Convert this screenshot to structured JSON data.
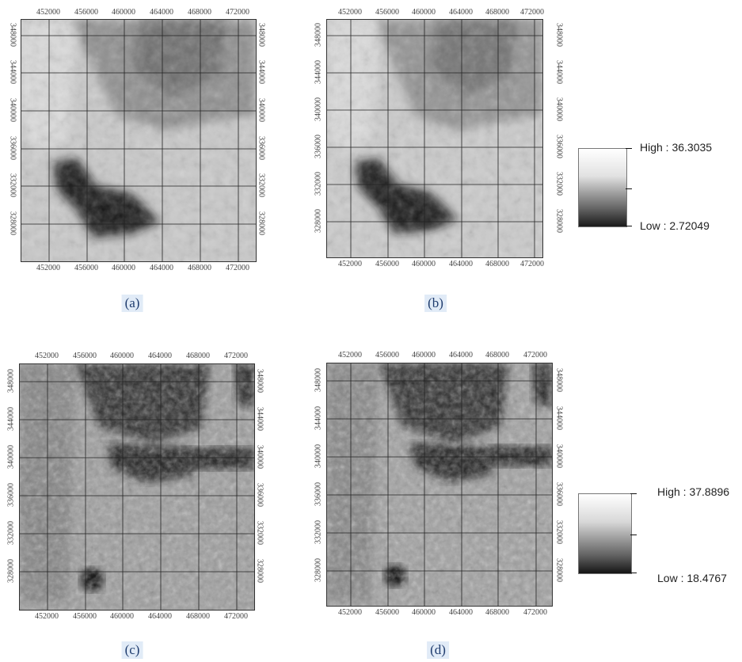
{
  "panels": [
    {
      "id": "a",
      "caption": "(a)",
      "top_ticks": [
        "452000",
        "456000",
        "460000",
        "464000",
        "468000",
        "472000"
      ],
      "bottom_ticks": [
        "452000",
        "456000",
        "460000",
        "464000",
        "468000",
        "472000"
      ],
      "left_ticks": [
        "348000",
        "344000",
        "340000",
        "336000",
        "332000",
        "328000"
      ],
      "right_ticks": [
        "348000",
        "344000",
        "340000",
        "336000",
        "332000",
        "328000"
      ]
    },
    {
      "id": "b",
      "caption": "(b)",
      "top_ticks": [
        "452000",
        "456000",
        "460000",
        "464000",
        "468000",
        "472000"
      ],
      "bottom_ticks": [
        "452000",
        "456000",
        "460000",
        "464000",
        "468000",
        "472000"
      ],
      "left_ticks": [
        "348000",
        "344000",
        "340000",
        "336000",
        "332000",
        "328000"
      ],
      "right_ticks": [
        "348000",
        "344000",
        "340000",
        "336000",
        "332000",
        "328000"
      ]
    },
    {
      "id": "c",
      "caption": "(c)",
      "top_ticks": [
        "452000",
        "456000",
        "460000",
        "464000",
        "468000",
        "472000"
      ],
      "bottom_ticks": [
        "452000",
        "456000",
        "460000",
        "464000",
        "468000",
        "472000"
      ],
      "left_ticks": [
        "348000",
        "344000",
        "340000",
        "336000",
        "332000",
        "328000"
      ],
      "right_ticks": [
        "348000",
        "344000",
        "340000",
        "336000",
        "332000",
        "328000"
      ]
    },
    {
      "id": "d",
      "caption": "(d)",
      "top_ticks": [
        "452000",
        "456000",
        "460000",
        "464000",
        "468000",
        "472000"
      ],
      "bottom_ticks": [
        "452000",
        "456000",
        "460000",
        "464000",
        "468000",
        "472000"
      ],
      "left_ticks": [
        "348000",
        "344000",
        "340000",
        "336000",
        "332000",
        "328000"
      ],
      "right_ticks": [
        "348000",
        "344000",
        "340000",
        "336000",
        "332000",
        "328000"
      ]
    }
  ],
  "legends": [
    {
      "high": "High : 36.3035",
      "low": "Low : 2.72049"
    },
    {
      "high": "High : 37.8896",
      "low": "Low : 18.4767"
    }
  ]
}
